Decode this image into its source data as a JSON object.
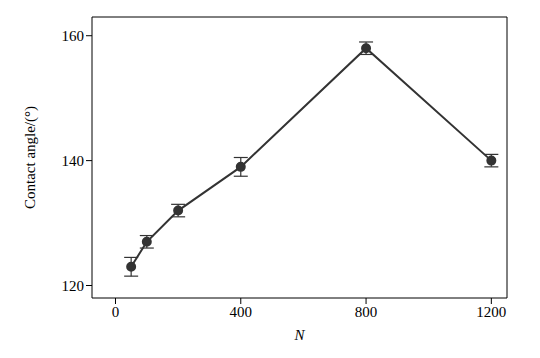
{
  "chart_data": {
    "type": "line",
    "x_label": "N",
    "y_label": "Contact angle/(°)",
    "x": [
      50,
      100,
      200,
      400,
      800,
      1200
    ],
    "values": [
      123,
      127,
      132,
      139,
      158,
      140
    ],
    "errors": [
      1.5,
      1,
      1,
      1.5,
      1,
      1
    ],
    "xlim": [
      -75,
      1250
    ],
    "ylim": [
      118,
      163
    ],
    "xticks": [
      0,
      400,
      800,
      1200
    ],
    "yticks": [
      120,
      140,
      160
    ],
    "color": "#333333",
    "marker": "circle",
    "grid": false
  }
}
